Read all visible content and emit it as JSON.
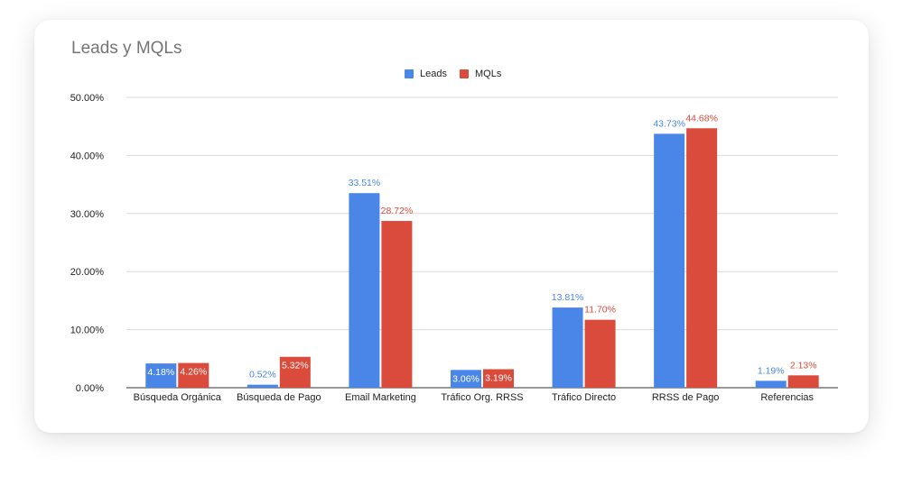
{
  "chart_data": {
    "type": "bar",
    "title": "Leads y MQLs",
    "categories": [
      "Búsqueda Orgánica",
      "Búsqueda de Pago",
      "Email Marketing",
      "Tráfico Org. RRSS",
      "Tráfico Directo",
      "RRSS de Pago",
      "Referencias"
    ],
    "series": [
      {
        "name": "Leads",
        "color": "#4a86e8",
        "values": [
          4.18,
          0.52,
          33.51,
          3.06,
          13.81,
          43.73,
          1.19
        ],
        "labels": [
          "4.18%",
          "0.52%",
          "33.51%",
          "3.06%",
          "13.81%",
          "43.73%",
          "1.19%"
        ]
      },
      {
        "name": "MQLs",
        "color": "#db4b3c",
        "values": [
          4.26,
          5.32,
          28.72,
          3.19,
          11.7,
          44.68,
          2.13
        ],
        "labels": [
          "4.26%",
          "5.32%",
          "28.72%",
          "3.19%",
          "11.70%",
          "44.68%",
          "2.13%"
        ]
      }
    ],
    "ylim": [
      0,
      50
    ],
    "yticks": [
      0,
      10,
      20,
      30,
      40,
      50
    ],
    "ytick_labels": [
      "0.00%",
      "10.00%",
      "20.00%",
      "30.00%",
      "40.00%",
      "50.00%"
    ],
    "xlabel": "",
    "ylabel": "",
    "grid": true,
    "legend_position": "top"
  }
}
